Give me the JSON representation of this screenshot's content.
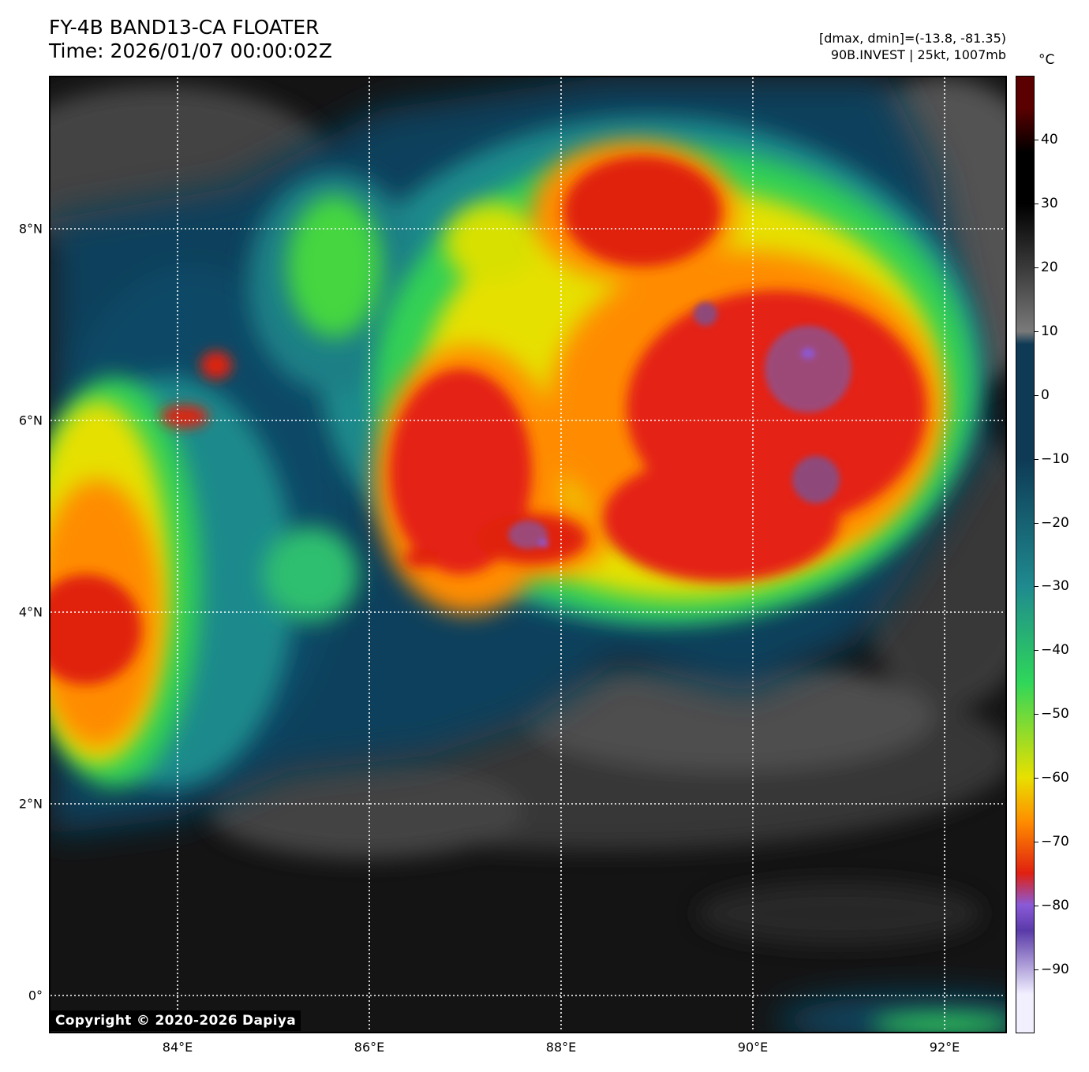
{
  "title": {
    "line1": "FY-4B BAND13-CA FLOATER",
    "line2": "Time: 2026/01/07 00:00:02Z"
  },
  "info": {
    "range": "[dmax, dmin]=(-13.8, -81.35)",
    "storm": "90B.INVEST | 25kt, 1007mb"
  },
  "axes": {
    "lon_labels": [
      "84°E",
      "86°E",
      "88°E",
      "90°E",
      "92°E"
    ],
    "lat_labels": [
      "8°N",
      "6°N",
      "4°N",
      "2°N",
      "0°"
    ]
  },
  "colorbar": {
    "unit": "°C",
    "tick_labels": [
      "40",
      "30",
      "20",
      "10",
      "0",
      "−10",
      "−20",
      "−30",
      "−40",
      "−50",
      "−60",
      "−70",
      "−80",
      "−90"
    ],
    "range": [
      -100,
      50
    ],
    "colors": {
      "warm_dark_red": "#5a0000",
      "warm_black": "#000000",
      "gray": "#7a7a7a",
      "navy": "#0e3a55",
      "teal": "#1f8a8f",
      "green": "#2fd65a",
      "yellow": "#e8e000",
      "orange": "#ff8c00",
      "red": "#e02010",
      "purple": "#8a5ad8",
      "lavender": "#f2f0ff"
    }
  },
  "copyright": "Copyright © 2020-2026 Dapiya"
}
